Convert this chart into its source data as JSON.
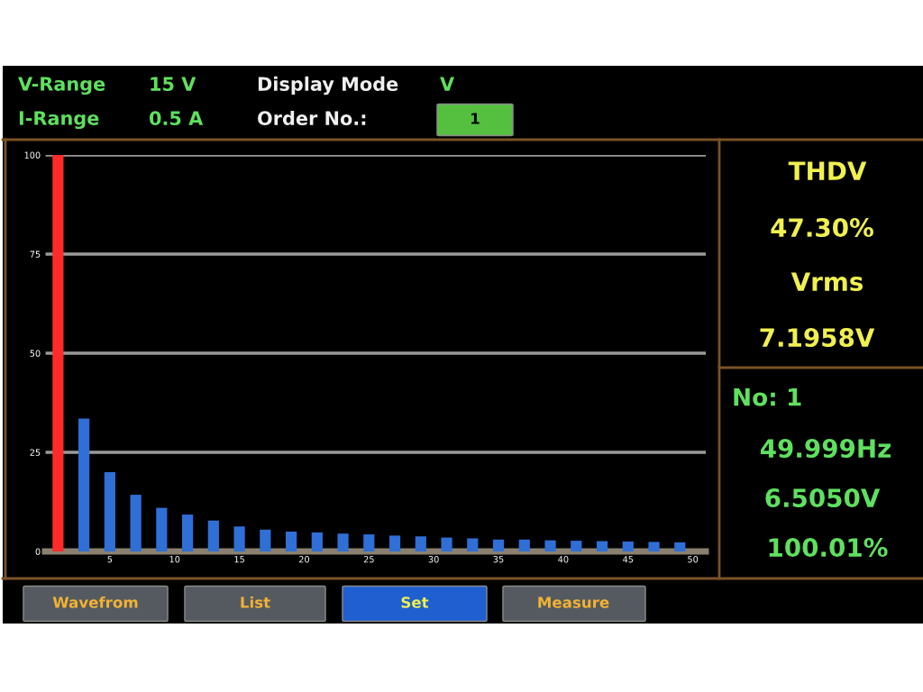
{
  "chart_data": {
    "type": "bar",
    "x": [
      1,
      3,
      5,
      7,
      9,
      11,
      13,
      15,
      17,
      19,
      21,
      23,
      25,
      27,
      29,
      31,
      33,
      35,
      37,
      39,
      41,
      43,
      45,
      47,
      49
    ],
    "values": [
      100,
      33.5,
      20,
      14.3,
      11,
      9.3,
      7.8,
      6.3,
      5.5,
      5,
      4.8,
      4.5,
      4.3,
      4,
      3.8,
      3.5,
      3.3,
      3,
      3,
      2.8,
      2.7,
      2.6,
      2.5,
      2.4,
      2.3
    ],
    "colors": [
      "#ff2a2a",
      "#2f6fd6",
      "#2f6fd6",
      "#2f6fd6",
      "#2f6fd6",
      "#2f6fd6",
      "#2f6fd6",
      "#2f6fd6",
      "#2f6fd6",
      "#2f6fd6",
      "#2f6fd6",
      "#2f6fd6",
      "#2f6fd6",
      "#2f6fd6",
      "#2f6fd6",
      "#2f6fd6",
      "#2f6fd6",
      "#2f6fd6",
      "#2f6fd6",
      "#2f6fd6",
      "#2f6fd6",
      "#2f6fd6",
      "#2f6fd6",
      "#2f6fd6",
      "#2f6fd6"
    ],
    "xlim": [
      0,
      51
    ],
    "xticks": [
      5,
      10,
      15,
      20,
      25,
      30,
      35,
      40,
      45,
      50
    ],
    "ylim": [
      0,
      100
    ],
    "yticks": [
      0,
      25,
      50,
      75,
      100
    ],
    "grid": "y",
    "annotations": [
      "V-Range",
      "15 V",
      "Display Mode",
      "V",
      "I-Range",
      "0.5 A",
      "Order No.:",
      "1",
      "THDV",
      "47.30%",
      "Vrms",
      "7.1958V",
      "No: 1",
      "49.999Hz",
      "6.5050V",
      "100.01%",
      "Wavefrom",
      "List",
      "Set",
      "Measure"
    ]
  }
}
